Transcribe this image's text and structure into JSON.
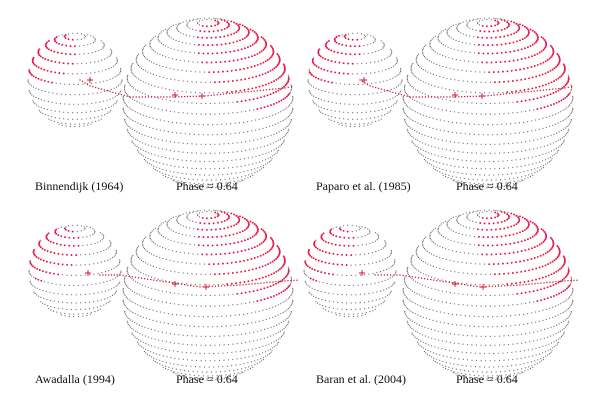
{
  "colors": {
    "surface_dot": "#6b6b6b",
    "spot": "#e8154a",
    "orbit": "#d0102e",
    "background": "#ffffff"
  },
  "panels": [
    {
      "model": "Binnendijk (1964)",
      "phase": "Phase = 0.64"
    },
    {
      "model": "Paparo et al. (1985)",
      "phase": "Phase = 0.64"
    },
    {
      "model": "Awadalla (1994)",
      "phase": "Phase = 0.64"
    },
    {
      "model": "Baran et al. (2004)",
      "phase": "Phase = 0.64"
    }
  ]
}
